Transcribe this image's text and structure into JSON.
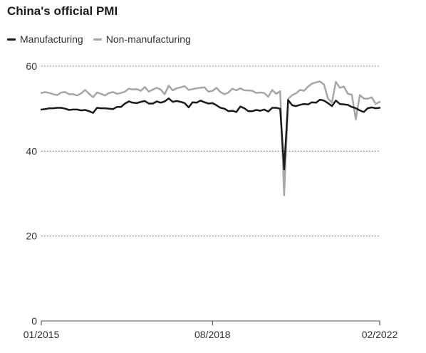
{
  "chart_data": {
    "type": "line",
    "title": "China's official PMI",
    "xlabel": "",
    "ylabel": "",
    "ylim": [
      0,
      60
    ],
    "yticks": [
      0,
      20,
      40,
      60
    ],
    "x_tick_labels": [
      "01/2015",
      "08/2018",
      "02/2022"
    ],
    "x": [
      "2015-01",
      "2015-02",
      "2015-03",
      "2015-04",
      "2015-05",
      "2015-06",
      "2015-07",
      "2015-08",
      "2015-09",
      "2015-10",
      "2015-11",
      "2015-12",
      "2016-01",
      "2016-02",
      "2016-03",
      "2016-04",
      "2016-05",
      "2016-06",
      "2016-07",
      "2016-08",
      "2016-09",
      "2016-10",
      "2016-11",
      "2016-12",
      "2017-01",
      "2017-02",
      "2017-03",
      "2017-04",
      "2017-05",
      "2017-06",
      "2017-07",
      "2017-08",
      "2017-09",
      "2017-10",
      "2017-11",
      "2017-12",
      "2018-01",
      "2018-02",
      "2018-03",
      "2018-04",
      "2018-05",
      "2018-06",
      "2018-07",
      "2018-08",
      "2018-09",
      "2018-10",
      "2018-11",
      "2018-12",
      "2019-01",
      "2019-02",
      "2019-03",
      "2019-04",
      "2019-05",
      "2019-06",
      "2019-07",
      "2019-08",
      "2019-09",
      "2019-10",
      "2019-11",
      "2019-12",
      "2020-01",
      "2020-02",
      "2020-03",
      "2020-04",
      "2020-05",
      "2020-06",
      "2020-07",
      "2020-08",
      "2020-09",
      "2020-10",
      "2020-11",
      "2020-12",
      "2021-01",
      "2021-02",
      "2021-03",
      "2021-04",
      "2021-05",
      "2021-06",
      "2021-07",
      "2021-08",
      "2021-09",
      "2021-10",
      "2021-11",
      "2021-12",
      "2022-01",
      "2022-02"
    ],
    "series": [
      {
        "name": "Manufacturing",
        "color": "#1a1a1a",
        "values": [
          49.8,
          49.9,
          50.1,
          50.1,
          50.2,
          50.2,
          50.0,
          49.7,
          49.8,
          49.8,
          49.6,
          49.7,
          49.4,
          49.0,
          50.2,
          50.1,
          50.1,
          50.0,
          49.9,
          50.4,
          50.4,
          51.2,
          51.7,
          51.4,
          51.3,
          51.6,
          51.8,
          51.2,
          51.2,
          51.7,
          51.4,
          51.7,
          52.4,
          51.6,
          51.8,
          51.6,
          51.3,
          50.3,
          51.5,
          51.4,
          51.9,
          51.5,
          51.2,
          51.3,
          50.8,
          50.2,
          50.0,
          49.4,
          49.5,
          49.2,
          50.5,
          50.1,
          49.4,
          49.4,
          49.7,
          49.5,
          49.8,
          49.3,
          50.2,
          50.2,
          50.0,
          35.7,
          52.0,
          50.8,
          50.6,
          50.9,
          51.1,
          51.0,
          51.5,
          51.4,
          52.1,
          51.9,
          51.3,
          50.6,
          51.9,
          51.1,
          51.0,
          50.9,
          50.4,
          50.1,
          49.6,
          49.2,
          50.1,
          50.3,
          50.1,
          50.2
        ]
      },
      {
        "name": "Non-manufacturing",
        "color": "#a6a6a6",
        "values": [
          53.7,
          53.9,
          53.7,
          53.4,
          53.2,
          53.8,
          53.9,
          53.4,
          53.4,
          53.1,
          53.6,
          54.4,
          53.5,
          52.7,
          53.8,
          53.5,
          53.1,
          53.7,
          53.9,
          53.5,
          53.7,
          54.0,
          54.7,
          54.5,
          54.6,
          54.2,
          55.1,
          54.0,
          54.5,
          54.9,
          54.5,
          53.4,
          55.4,
          54.3,
          54.8,
          55.0,
          55.3,
          54.4,
          54.6,
          54.8,
          54.9,
          55.0,
          54.0,
          54.2,
          54.9,
          53.9,
          53.4,
          53.8,
          54.7,
          54.3,
          54.8,
          54.3,
          54.3,
          54.2,
          53.7,
          53.8,
          53.7,
          52.8,
          54.4,
          53.5,
          54.1,
          29.6,
          52.3,
          53.2,
          53.6,
          54.4,
          54.2,
          55.2,
          55.9,
          56.2,
          56.4,
          55.7,
          52.4,
          51.4,
          56.3,
          54.9,
          55.2,
          53.5,
          53.3,
          47.5,
          53.2,
          52.4,
          52.3,
          52.7,
          51.1,
          51.6
        ]
      }
    ],
    "legend": "top-left",
    "grid": "horizontal dotted"
  }
}
